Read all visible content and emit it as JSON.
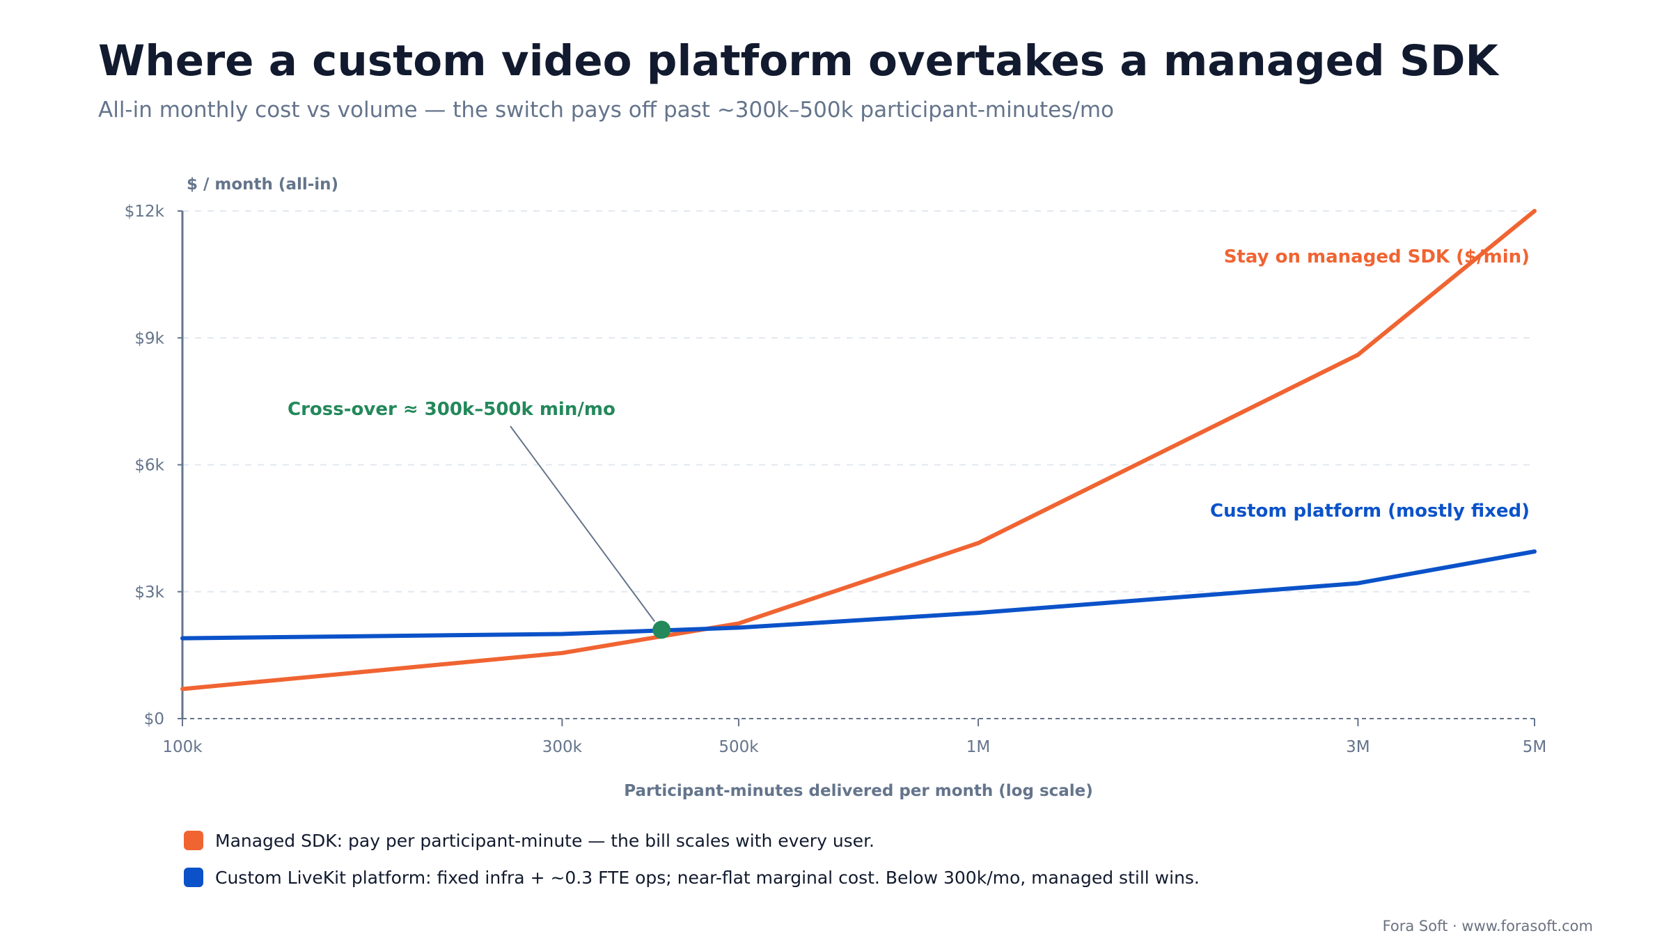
{
  "header": {
    "title": "Where a custom video platform overtakes a managed SDK",
    "subtitle": "All-in monthly cost vs volume — the switch pays off past ~300k–500k participant-minutes/mo"
  },
  "chart_data": {
    "type": "line",
    "x_scale": "log",
    "xlabel": "Participant-minutes delivered per month (log scale)",
    "ylabel": "$ / month (all-in)",
    "xlim": [
      100000,
      5000000
    ],
    "ylim": [
      0,
      12000
    ],
    "x_ticks": [
      {
        "value": 100000,
        "label": "100k"
      },
      {
        "value": 300000,
        "label": "300k"
      },
      {
        "value": 500000,
        "label": "500k"
      },
      {
        "value": 1000000,
        "label": "1M"
      },
      {
        "value": 3000000,
        "label": "3M"
      },
      {
        "value": 5000000,
        "label": "5M"
      }
    ],
    "y_ticks": [
      {
        "value": 0,
        "label": "$0"
      },
      {
        "value": 3000,
        "label": "$3k"
      },
      {
        "value": 6000,
        "label": "$6k"
      },
      {
        "value": 9000,
        "label": "$9k"
      },
      {
        "value": 12000,
        "label": "$12k"
      }
    ],
    "grid": "horizontal dashed",
    "series": [
      {
        "name": "Stay on managed SDK ($/min)",
        "color": "#f06432",
        "points": [
          [
            100000,
            700
          ],
          [
            300000,
            1550
          ],
          [
            500000,
            2250
          ],
          [
            1000000,
            4150
          ],
          [
            3000000,
            8600
          ],
          [
            5000000,
            12000
          ]
        ]
      },
      {
        "name": "Custom platform (mostly fixed)",
        "color": "#0b52c9",
        "points": [
          [
            100000,
            1900
          ],
          [
            300000,
            2000
          ],
          [
            500000,
            2150
          ],
          [
            1000000,
            2500
          ],
          [
            3000000,
            3200
          ],
          [
            5000000,
            3950
          ]
        ]
      }
    ],
    "annotation": {
      "text": "Cross-over ≈ 300k–500k min/mo",
      "x": 400000,
      "y": 2100,
      "color": "#23885a"
    }
  },
  "legend": [
    {
      "color": "#f06432",
      "text": "Managed SDK: pay per participant-minute — the bill scales with every user."
    },
    {
      "color": "#0b52c9",
      "text": "Custom LiveKit platform: fixed infra + ~0.3 FTE ops; near-flat marginal cost. Below 300k/mo, managed still wins."
    }
  ],
  "footer": "Fora Soft · www.forasoft.com"
}
